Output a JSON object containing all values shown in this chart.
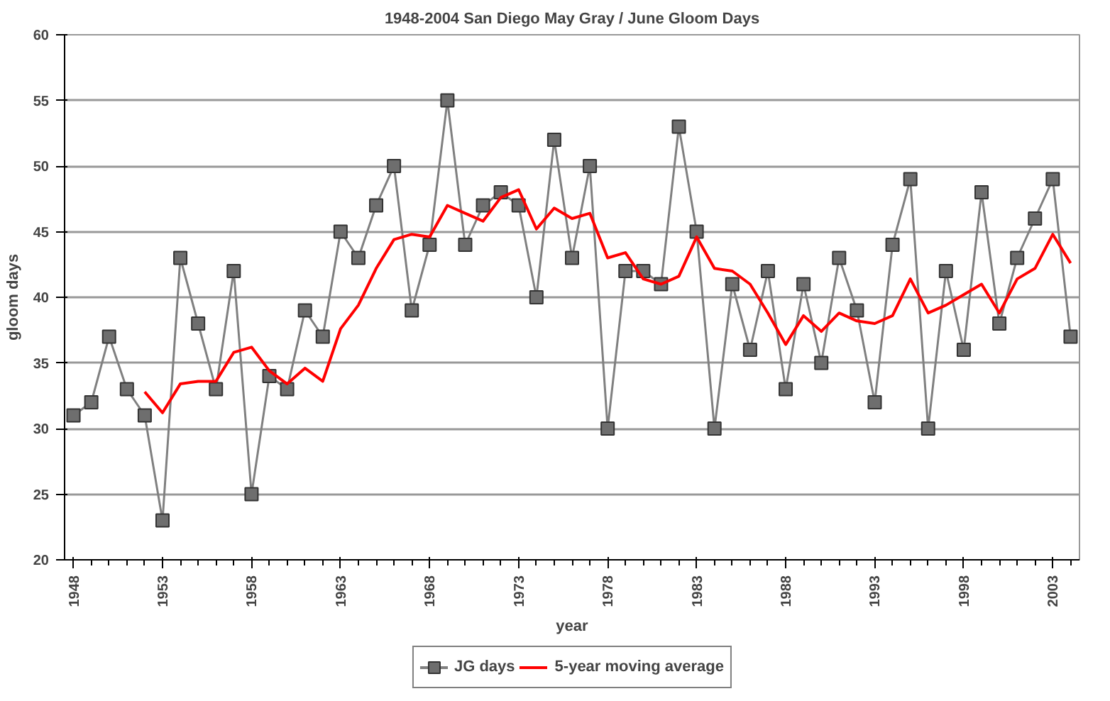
{
  "chart_data": {
    "type": "line",
    "title": "1948-2004 San Diego May Gray / June Gloom Days",
    "xlabel": "year",
    "ylabel": "gloom days",
    "x": [
      1948,
      1949,
      1950,
      1951,
      1952,
      1953,
      1954,
      1955,
      1956,
      1957,
      1958,
      1959,
      1960,
      1961,
      1962,
      1963,
      1964,
      1965,
      1966,
      1967,
      1968,
      1969,
      1970,
      1971,
      1972,
      1973,
      1974,
      1975,
      1976,
      1977,
      1978,
      1979,
      1980,
      1981,
      1982,
      1983,
      1984,
      1985,
      1986,
      1987,
      1988,
      1989,
      1990,
      1991,
      1992,
      1993,
      1994,
      1995,
      1996,
      1997,
      1998,
      1999,
      2000,
      2001,
      2002,
      2003,
      2004
    ],
    "series": [
      {
        "name": "JG days",
        "color": "#808080",
        "marker": "square",
        "values": [
          31,
          32,
          37,
          33,
          31,
          23,
          43,
          38,
          33,
          42,
          25,
          34,
          33,
          39,
          37,
          45,
          43,
          47,
          50,
          39,
          44,
          55,
          44,
          47,
          48,
          47,
          40,
          52,
          43,
          50,
          30,
          42,
          42,
          41,
          53,
          45,
          30,
          41,
          36,
          42,
          33,
          41,
          35,
          43,
          39,
          32,
          44,
          49,
          30,
          42,
          36,
          48,
          38,
          43,
          46,
          49,
          37
        ]
      },
      {
        "name": "5-year moving average",
        "color": "#ff0000",
        "marker": "none",
        "x": [
          1952,
          1953,
          1954,
          1955,
          1956,
          1957,
          1958,
          1959,
          1960,
          1961,
          1962,
          1963,
          1964,
          1965,
          1966,
          1967,
          1968,
          1969,
          1970,
          1971,
          1972,
          1973,
          1974,
          1975,
          1976,
          1977,
          1978,
          1979,
          1980,
          1981,
          1982,
          1983,
          1984,
          1985,
          1986,
          1987,
          1988,
          1989,
          1990,
          1991,
          1992,
          1993,
          1994,
          1995,
          1996,
          1997,
          1998,
          1999,
          2000,
          2001,
          2002,
          2003,
          2004
        ],
        "values": [
          32.8,
          31.2,
          33.4,
          33.6,
          33.6,
          35.8,
          36.2,
          34.4,
          33.4,
          34.6,
          33.6,
          37.6,
          39.4,
          42.2,
          44.4,
          44.8,
          44.6,
          47,
          46.4,
          45.8,
          47.6,
          48.2,
          45.2,
          46.8,
          46,
          46.4,
          43,
          43.4,
          41.4,
          41,
          41.6,
          44.6,
          42.2,
          42,
          41,
          38.8,
          36.4,
          38.6,
          37.4,
          38.8,
          38.2,
          38,
          38.6,
          41.4,
          38.8,
          39.4,
          40.2,
          41,
          38.8,
          41.4,
          42.2,
          44.8,
          42.6
        ]
      }
    ],
    "xlim": [
      1947.5,
      2004.5
    ],
    "xticks": [
      1948,
      1953,
      1958,
      1963,
      1968,
      1973,
      1978,
      1983,
      1988,
      1993,
      1998,
      2003
    ],
    "ylim": [
      20,
      60
    ],
    "yticks": [
      20,
      25,
      30,
      35,
      40,
      45,
      50,
      55,
      60
    ],
    "grid": "y",
    "legend": "bottom",
    "line_style": "solid"
  }
}
